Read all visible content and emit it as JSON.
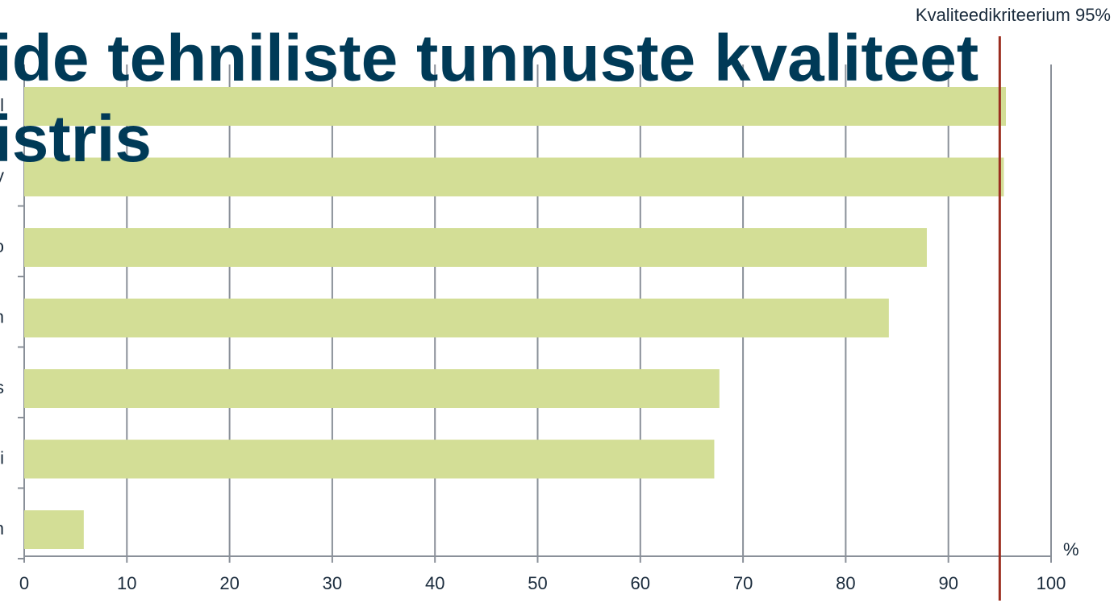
{
  "chart_data": {
    "type": "bar",
    "orientation": "horizontal",
    "title_lines": [
      "ide tehniliste tunnuste kvaliteet",
      "istris"
    ],
    "categories": [
      "l",
      "y",
      "o",
      "n",
      "s",
      "i",
      "n"
    ],
    "values": [
      95.6,
      95.4,
      87.9,
      84.2,
      67.7,
      67.2,
      5.8
    ],
    "color": "#d3de96",
    "xlim": [
      0,
      100
    ],
    "xticks": [
      0,
      10,
      20,
      30,
      40,
      50,
      60,
      70,
      80,
      90,
      100
    ],
    "x_unit_label": "%",
    "grid": true,
    "reference_line": {
      "value": 95,
      "label": "Kvaliteedikriteerium 95%",
      "color": "#9b2d1f"
    }
  }
}
